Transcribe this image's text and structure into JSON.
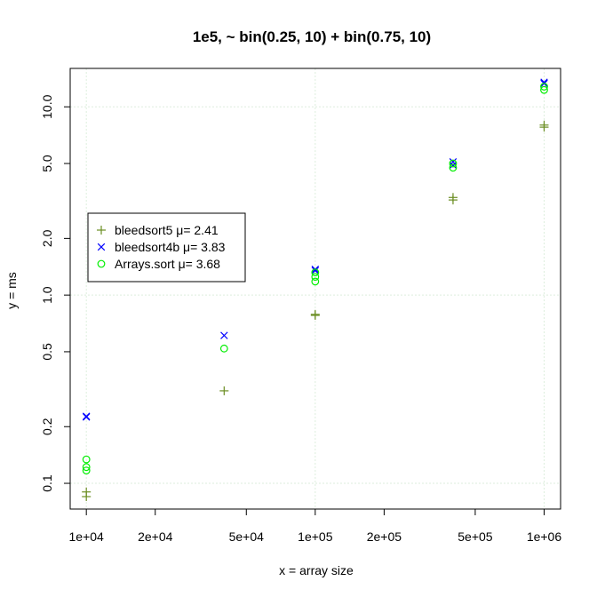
{
  "chart_data": {
    "type": "scatter",
    "title": "1e5, ~ bin(0.25, 10) + bin(0.75, 10)",
    "xlabel": "x = array size",
    "ylabel": "y = ms",
    "x_scale": "log",
    "y_scale": "log",
    "xlim": [
      8500,
      1180000
    ],
    "ylim": [
      0.073,
      16
    ],
    "grid": true,
    "legend_position": "left",
    "x_ticks": [
      {
        "value": 10000,
        "label": "1e+04"
      },
      {
        "value": 20000,
        "label": "2e+04"
      },
      {
        "value": 50000,
        "label": "5e+04"
      },
      {
        "value": 100000,
        "label": "1e+05"
      },
      {
        "value": 200000,
        "label": "2e+05"
      },
      {
        "value": 500000,
        "label": "5e+05"
      },
      {
        "value": 1000000,
        "label": "1e+06"
      }
    ],
    "y_ticks": [
      {
        "value": 0.1,
        "label": "0.1"
      },
      {
        "value": 0.2,
        "label": "0.2"
      },
      {
        "value": 0.5,
        "label": "0.5"
      },
      {
        "value": 1.0,
        "label": "1.0"
      },
      {
        "value": 2.0,
        "label": "2.0"
      },
      {
        "value": 5.0,
        "label": "5.0"
      },
      {
        "value": 10.0,
        "label": "10.0"
      }
    ],
    "grid_x": [
      10000,
      100000,
      1000000
    ],
    "grid_y": [
      0.1,
      1.0,
      10.0
    ],
    "series": [
      {
        "name": "bleedsort5 μ= 2.41",
        "marker": "plus",
        "color": "#6b8e23",
        "points": [
          [
            10000,
            0.085
          ],
          [
            10000,
            0.09
          ],
          [
            40000,
            0.31
          ],
          [
            100000,
            0.78
          ],
          [
            100000,
            0.79
          ],
          [
            400000,
            3.2
          ],
          [
            400000,
            3.3
          ],
          [
            1000000,
            7.8
          ],
          [
            1000000,
            8.0
          ]
        ]
      },
      {
        "name": "bleedsort4b μ= 3.83",
        "marker": "cross",
        "color": "#0000ff",
        "points": [
          [
            10000,
            0.225
          ],
          [
            10000,
            0.227
          ],
          [
            40000,
            0.61
          ],
          [
            100000,
            1.35
          ],
          [
            100000,
            1.37
          ],
          [
            400000,
            4.9
          ],
          [
            400000,
            5.1
          ],
          [
            1000000,
            13.3
          ],
          [
            1000000,
            13.5
          ]
        ]
      },
      {
        "name": "Arrays.sort μ= 3.68",
        "marker": "circle",
        "color": "#00ee00",
        "points": [
          [
            10000,
            0.117
          ],
          [
            10000,
            0.122
          ],
          [
            10000,
            0.134
          ],
          [
            40000,
            0.52
          ],
          [
            100000,
            1.18
          ],
          [
            100000,
            1.25
          ],
          [
            100000,
            1.32
          ],
          [
            400000,
            4.75
          ],
          [
            400000,
            5.0
          ],
          [
            1000000,
            12.3
          ],
          [
            1000000,
            12.8
          ]
        ]
      }
    ]
  }
}
